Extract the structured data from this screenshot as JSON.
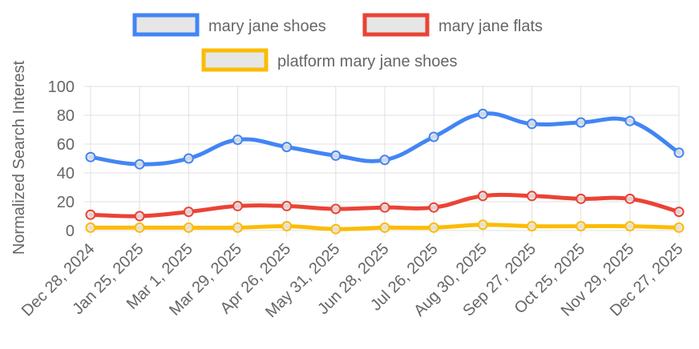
{
  "chart_data": {
    "type": "line",
    "ylabel": "Normalized Search Interest",
    "ylim": [
      0,
      100
    ],
    "yticks": [
      0,
      20,
      40,
      60,
      80,
      100
    ],
    "grid": true,
    "legend_position": "top",
    "categories": [
      "Dec 28, 2024",
      "Jan 25, 2025",
      "Mar 1, 2025",
      "Mar 29, 2025",
      "Apr 26, 2025",
      "May 31, 2025",
      "Jun 28, 2025",
      "Jul 26, 2025",
      "Aug 30, 2025",
      "Sep 27, 2025",
      "Oct 25, 2025",
      "Nov 29, 2025",
      "Dec 27, 2025"
    ],
    "series": [
      {
        "name": "mary jane shoes",
        "color": "#4285f4",
        "values": [
          51,
          46,
          50,
          63,
          58,
          52,
          49,
          65,
          81,
          74,
          75,
          76,
          54
        ]
      },
      {
        "name": "mary jane flats",
        "color": "#ea4335",
        "values": [
          11,
          10,
          13,
          17,
          17,
          15,
          16,
          16,
          24,
          24,
          22,
          22,
          13
        ]
      },
      {
        "name": "platform mary jane shoes",
        "color": "#fbbc04",
        "values": [
          2,
          2,
          2,
          2,
          3,
          1,
          2,
          2,
          4,
          3,
          3,
          3,
          2
        ]
      }
    ]
  }
}
